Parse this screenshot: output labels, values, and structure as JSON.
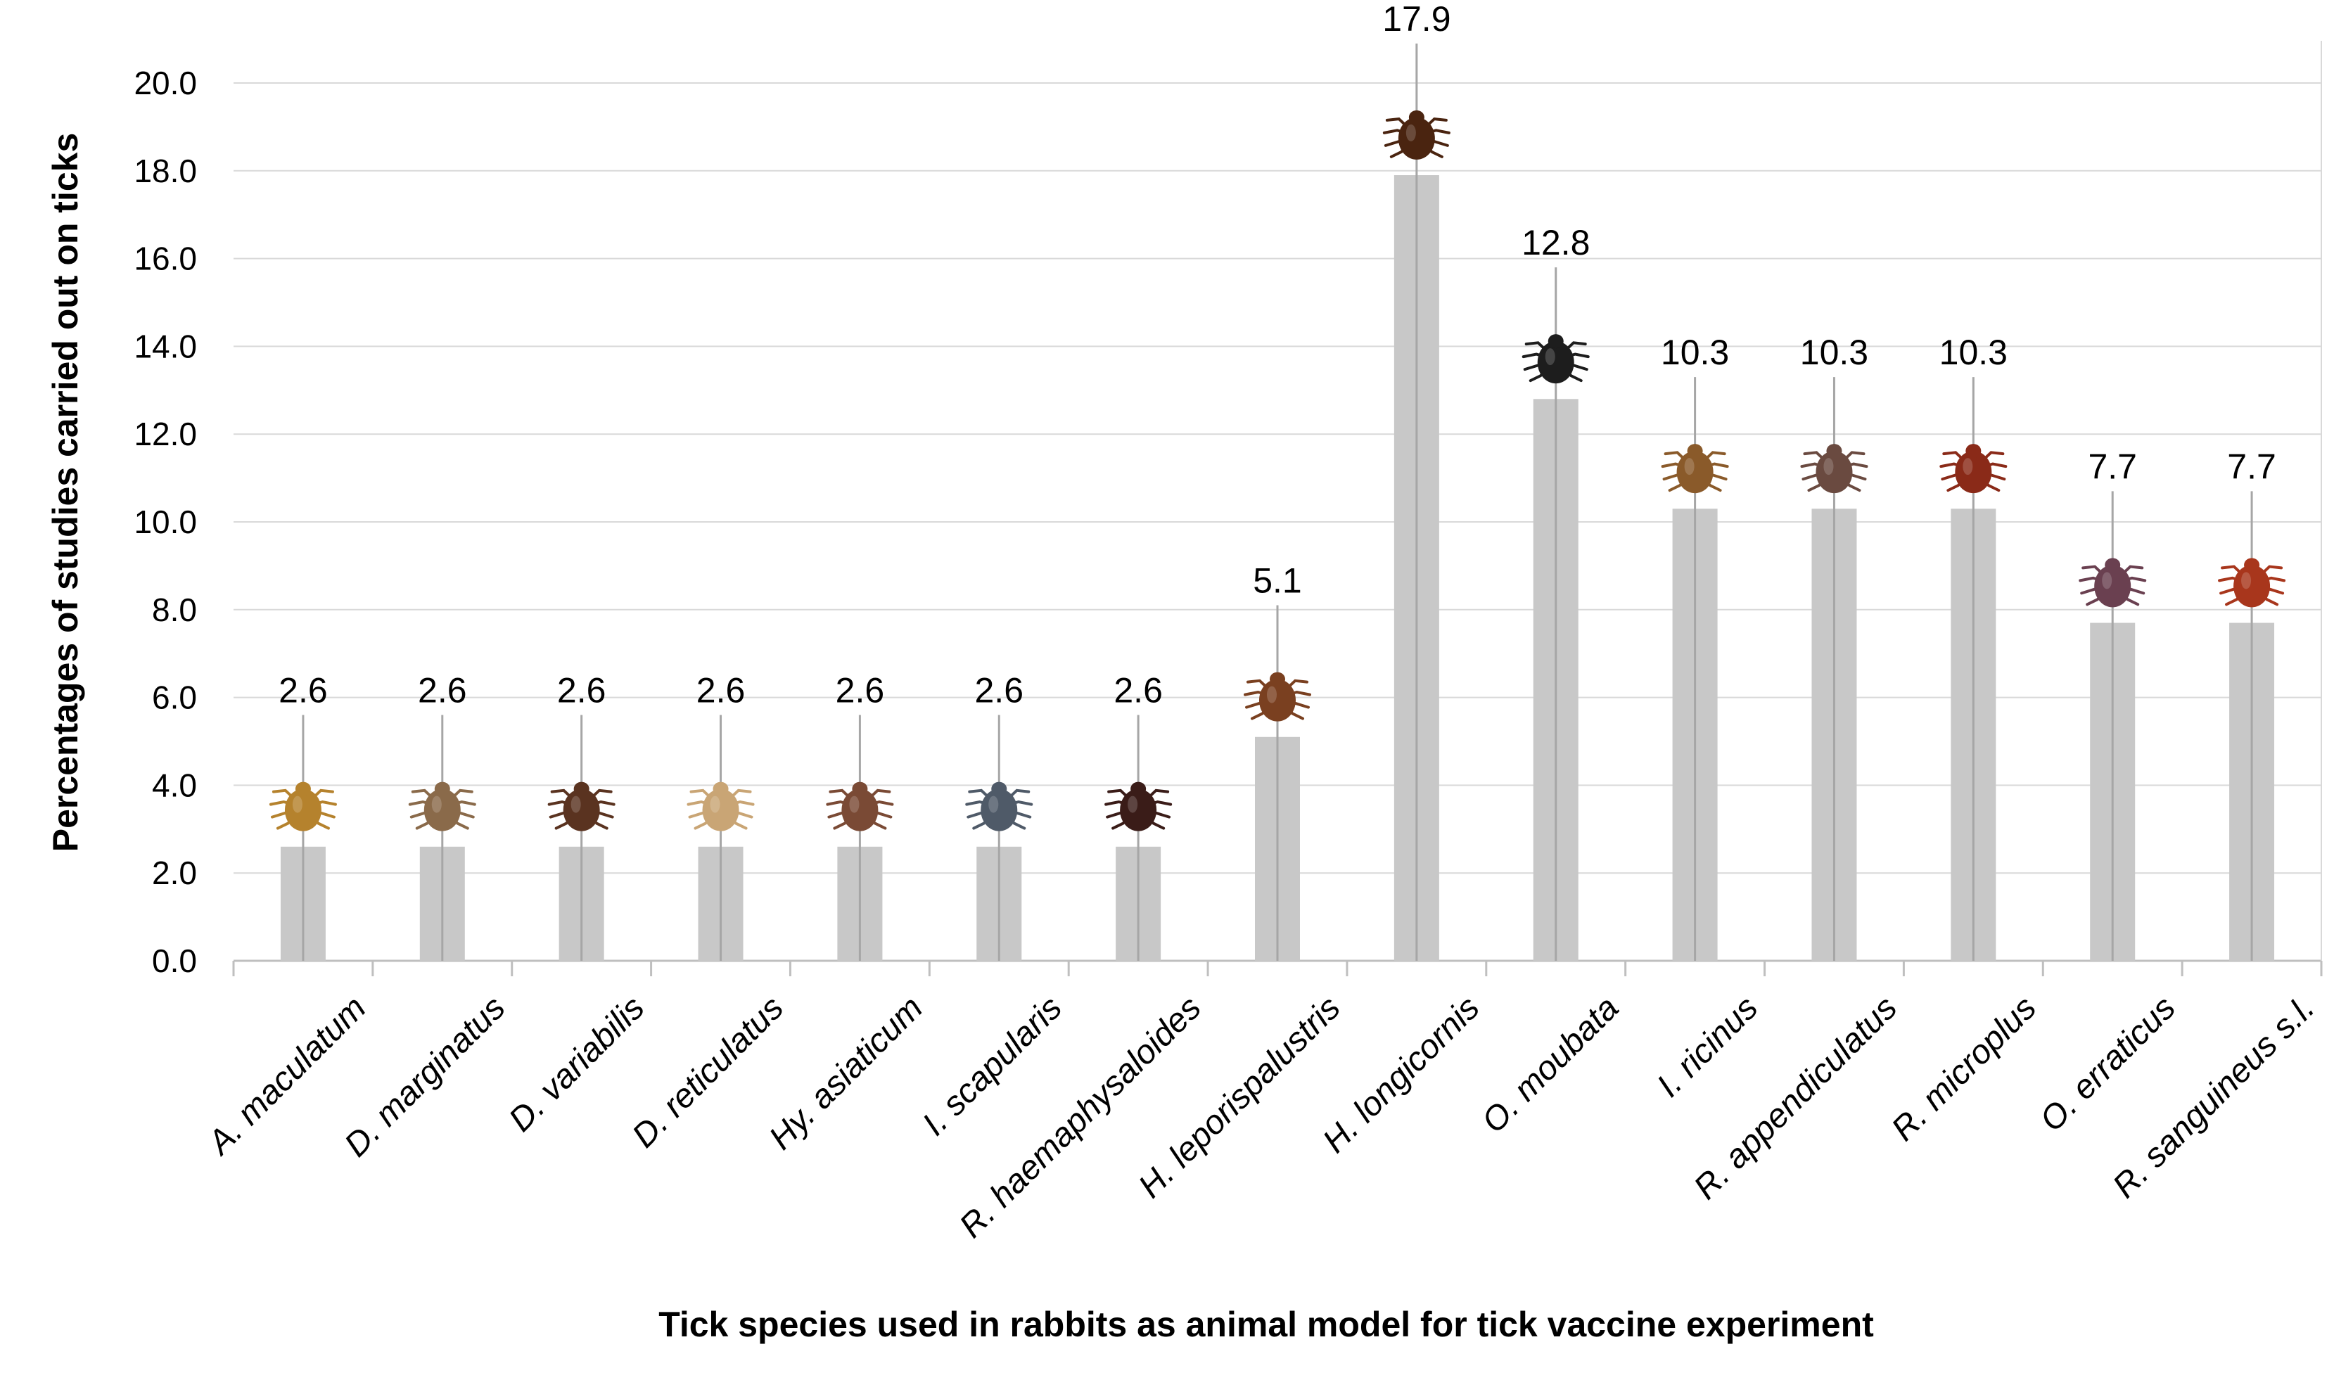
{
  "chart_data": {
    "type": "bar",
    "title": "",
    "xlabel": "Tick species used in rabbits as animal model for tick vaccine experiment",
    "ylabel": "Percentages of studies carried out on ticks",
    "ylim": [
      0,
      20
    ],
    "yticks": [
      "0.0",
      "2.0",
      "4.0",
      "6.0",
      "8.0",
      "10.0",
      "12.0",
      "14.0",
      "16.0",
      "18.0",
      "20.0"
    ],
    "grid": true,
    "categories": [
      "A. maculatum",
      "D. marginatus",
      "D. variabilis",
      "D. reticulatus",
      "Hy. asiaticum",
      "I. scapularis",
      "R. haemaphysaloides",
      "H. leporispalustris",
      "H. longicornis",
      "O. moubata",
      "I. ricinus",
      "R. appendiculatus",
      "R. microplus",
      "O. erraticus",
      "R. sanguineus s.l."
    ],
    "values": [
      2.6,
      2.6,
      2.6,
      2.6,
      2.6,
      2.6,
      2.6,
      5.1,
      17.9,
      12.8,
      10.3,
      10.3,
      10.3,
      7.7,
      7.7
    ],
    "value_labels": [
      "2.6",
      "2.6",
      "2.6",
      "2.6",
      "2.6",
      "2.6",
      "2.6",
      "5.1",
      "17.9",
      "12.8",
      "10.3",
      "10.3",
      "10.3",
      "7.7",
      "7.7"
    ],
    "bar_color": "#c8c8c8",
    "tick_colors": [
      "#b5822d",
      "#8a6a4a",
      "#5a3320",
      "#c9a575",
      "#7a4a35",
      "#4f5a68",
      "#3a1c18",
      "#7a4020",
      "#4a2410",
      "#1d1d1d",
      "#8a5a2a",
      "#6a4a40",
      "#8a2a18",
      "#6a4050",
      "#a8361c"
    ]
  }
}
